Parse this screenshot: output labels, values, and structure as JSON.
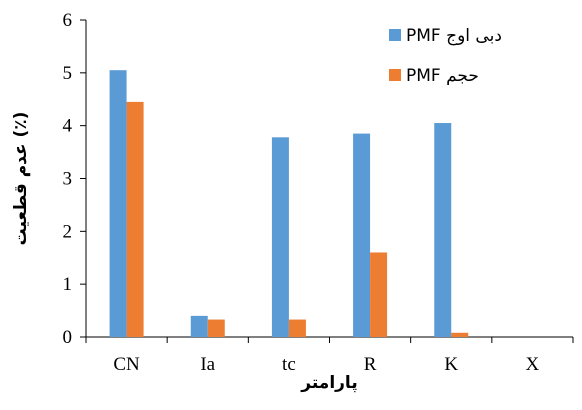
{
  "chart_data": {
    "type": "bar",
    "categories": [
      "CN",
      "Ia",
      "tc",
      "R",
      "K",
      "X"
    ],
    "series": [
      {
        "name": "دبی اوج PMF",
        "color": "#5B9BD5",
        "values": [
          5.05,
          0.4,
          3.78,
          3.85,
          4.05,
          0
        ]
      },
      {
        "name": "حجم PMF",
        "color": "#ED7D31",
        "values": [
          4.45,
          0.33,
          0.33,
          1.6,
          0.08,
          0
        ]
      }
    ],
    "title": "",
    "xlabel": "پارامتر",
    "ylabel": "عدم قطعیت (٪)",
    "ylim": [
      0,
      6
    ],
    "yticks": [
      0,
      1,
      2,
      3,
      4,
      5,
      6
    ],
    "grid": false,
    "legend": "top-right"
  }
}
